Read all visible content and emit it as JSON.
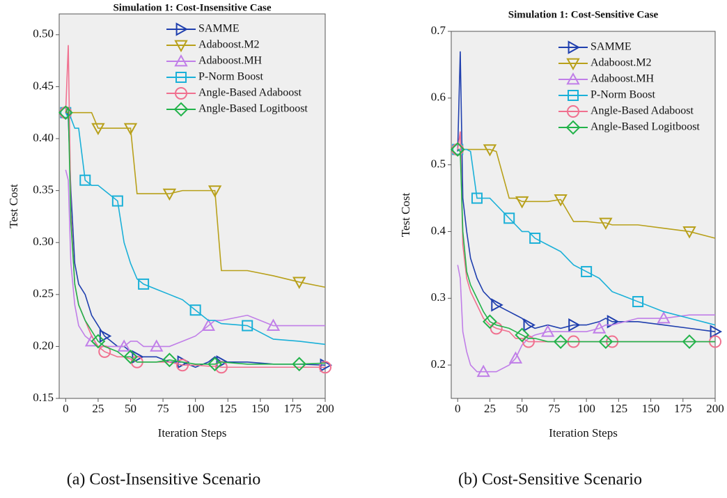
{
  "chart_data": [
    {
      "type": "line",
      "title": "Simulation 1: Cost-Insensitive Case",
      "xlabel": "Iteration Steps",
      "ylabel": "Test Cost",
      "caption": "(a) Cost-Insensitive Scenario",
      "xlim": [
        -5,
        200
      ],
      "ylim": [
        0.15,
        0.52
      ],
      "xticks": [
        0,
        25,
        50,
        75,
        100,
        125,
        150,
        175,
        200
      ],
      "yticks": [
        0.15,
        {
          "value": 0.2,
          "label": "0.20"
        },
        0.25,
        {
          "value": 0.3,
          "label": "0.30"
        },
        0.35,
        {
          "value": 0.4,
          "label": "0.40"
        },
        0.45,
        {
          "value": 0.5,
          "label": "0.50"
        }
      ],
      "legend": "upper right",
      "grid": false,
      "x": [
        0,
        2,
        4,
        7,
        10,
        15,
        20,
        25,
        30,
        40,
        45,
        50,
        55,
        60,
        70,
        80,
        90,
        100,
        110,
        115,
        120,
        140,
        160,
        180,
        200
      ],
      "series": [
        {
          "name": "SAMME",
          "color": "#1f3fae",
          "values": [
            0.43,
            0.42,
            0.35,
            0.28,
            0.26,
            0.25,
            0.23,
            0.22,
            0.21,
            0.2,
            0.2,
            0.195,
            0.19,
            0.19,
            0.19,
            0.185,
            0.185,
            0.18,
            0.185,
            0.19,
            0.185,
            0.185,
            0.183,
            0.183,
            0.182
          ]
        },
        {
          "name": "Adaboost.M2",
          "color": "#b8a01a",
          "values": [
            0.425,
            0.425,
            0.425,
            0.425,
            0.425,
            0.425,
            0.425,
            0.41,
            0.41,
            0.41,
            0.41,
            0.41,
            0.347,
            0.347,
            0.347,
            0.347,
            0.35,
            0.35,
            0.35,
            0.35,
            0.273,
            0.273,
            0.268,
            0.262,
            0.257
          ]
        },
        {
          "name": "Adaboost.MH",
          "color": "#c07ee8",
          "values": [
            0.37,
            0.36,
            0.28,
            0.24,
            0.22,
            0.21,
            0.205,
            0.2,
            0.2,
            0.2,
            0.2,
            0.205,
            0.205,
            0.2,
            0.2,
            0.2,
            0.205,
            0.21,
            0.22,
            0.225,
            0.225,
            0.23,
            0.22,
            0.22,
            0.22
          ]
        },
        {
          "name": "P-Norm Boost",
          "color": "#1ab0d8",
          "values": [
            0.425,
            0.42,
            0.42,
            0.41,
            0.41,
            0.36,
            0.355,
            0.355,
            0.35,
            0.34,
            0.3,
            0.28,
            0.265,
            0.26,
            0.255,
            0.25,
            0.245,
            0.235,
            0.225,
            0.225,
            0.222,
            0.22,
            0.207,
            0.205,
            0.202
          ]
        },
        {
          "name": "Angle-Based Adaboost",
          "color": "#f0708f",
          "values": [
            0.425,
            0.49,
            0.33,
            0.26,
            0.24,
            0.225,
            0.21,
            0.2,
            0.195,
            0.19,
            0.19,
            0.188,
            0.185,
            0.185,
            0.185,
            0.185,
            0.182,
            0.182,
            0.181,
            0.181,
            0.18,
            0.18,
            0.18,
            0.18,
            0.18
          ]
        },
        {
          "name": "Angle-Based Logitboost",
          "color": "#22b34a",
          "values": [
            0.425,
            0.43,
            0.32,
            0.26,
            0.24,
            0.225,
            0.215,
            0.205,
            0.2,
            0.195,
            0.19,
            0.19,
            0.185,
            0.185,
            0.185,
            0.187,
            0.185,
            0.183,
            0.183,
            0.183,
            0.185,
            0.183,
            0.183,
            0.183,
            0.184
          ]
        }
      ]
    },
    {
      "type": "line",
      "title": "Simulation 1: Cost-Sensitive Case",
      "xlabel": "Iteration Steps",
      "ylabel": "Test Cost",
      "caption": "(b) Cost-Sensitive Scenario",
      "xlim": [
        -5,
        200
      ],
      "ylim": [
        0.15,
        0.7
      ],
      "xticks": [
        0,
        25,
        50,
        75,
        100,
        125,
        150,
        175,
        200
      ],
      "yticks": [
        0.2,
        0.3,
        0.4,
        0.5,
        0.6,
        0.7
      ],
      "legend": "upper right",
      "grid": false,
      "x": [
        0,
        2,
        4,
        7,
        10,
        15,
        20,
        25,
        30,
        40,
        45,
        50,
        55,
        60,
        70,
        80,
        90,
        100,
        110,
        115,
        120,
        140,
        160,
        180,
        200
      ],
      "series": [
        {
          "name": "SAMME",
          "color": "#1f3fae",
          "values": [
            0.52,
            0.67,
            0.45,
            0.4,
            0.36,
            0.33,
            0.31,
            0.3,
            0.29,
            0.28,
            0.275,
            0.27,
            0.26,
            0.255,
            0.26,
            0.255,
            0.26,
            0.26,
            0.265,
            0.27,
            0.265,
            0.265,
            0.26,
            0.255,
            0.25
          ]
        },
        {
          "name": "Adaboost.M2",
          "color": "#b8a01a",
          "values": [
            0.523,
            0.523,
            0.523,
            0.523,
            0.523,
            0.523,
            0.523,
            0.523,
            0.52,
            0.45,
            0.45,
            0.445,
            0.445,
            0.445,
            0.445,
            0.448,
            0.415,
            0.415,
            0.413,
            0.413,
            0.41,
            0.41,
            0.405,
            0.4,
            0.39
          ]
        },
        {
          "name": "Adaboost.MH",
          "color": "#c07ee8",
          "values": [
            0.35,
            0.33,
            0.25,
            0.22,
            0.2,
            0.19,
            0.19,
            0.19,
            0.19,
            0.2,
            0.21,
            0.23,
            0.24,
            0.245,
            0.25,
            0.25,
            0.25,
            0.25,
            0.255,
            0.26,
            0.26,
            0.27,
            0.27,
            0.275,
            0.275
          ]
        },
        {
          "name": "P-Norm Boost",
          "color": "#1ab0d8",
          "values": [
            0.523,
            0.523,
            0.523,
            0.523,
            0.52,
            0.45,
            0.45,
            0.45,
            0.44,
            0.42,
            0.41,
            0.4,
            0.4,
            0.39,
            0.38,
            0.37,
            0.35,
            0.34,
            0.33,
            0.32,
            0.31,
            0.295,
            0.28,
            0.27,
            0.26
          ]
        },
        {
          "name": "Angle-Based Adaboost",
          "color": "#f0708f",
          "values": [
            0.523,
            0.55,
            0.38,
            0.33,
            0.31,
            0.29,
            0.27,
            0.26,
            0.255,
            0.25,
            0.24,
            0.24,
            0.235,
            0.235,
            0.235,
            0.235,
            0.235,
            0.235,
            0.235,
            0.235,
            0.235,
            0.235,
            0.235,
            0.235,
            0.235
          ]
        },
        {
          "name": "Angle-Based Logitboost",
          "color": "#22b34a",
          "values": [
            0.523,
            0.52,
            0.4,
            0.34,
            0.32,
            0.3,
            0.28,
            0.265,
            0.26,
            0.255,
            0.25,
            0.245,
            0.24,
            0.24,
            0.235,
            0.235,
            0.235,
            0.235,
            0.235,
            0.235,
            0.235,
            0.235,
            0.235,
            0.235,
            0.235
          ]
        }
      ]
    }
  ]
}
